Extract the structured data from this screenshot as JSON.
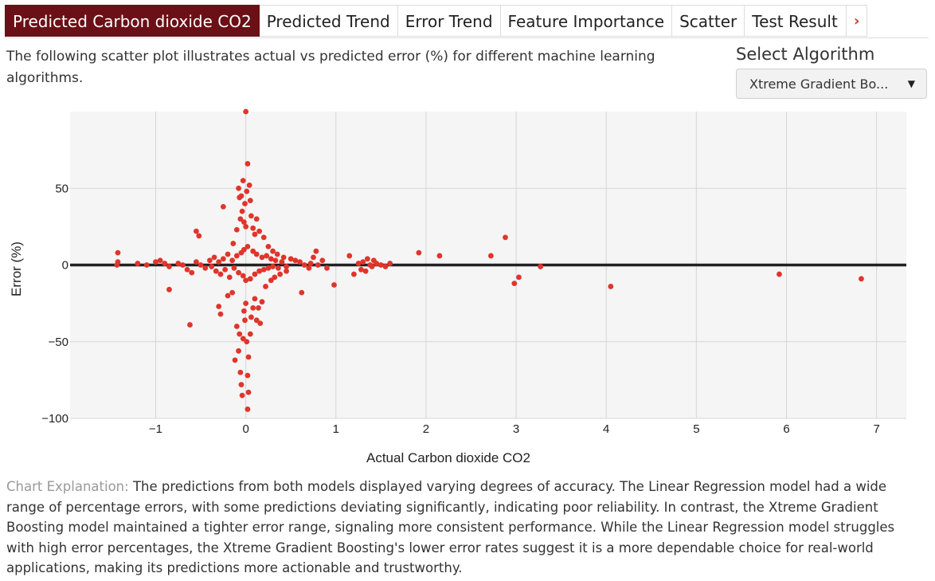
{
  "tabs": [
    {
      "label": "Predicted Carbon dioxide CO2",
      "active": true
    },
    {
      "label": "Predicted Trend",
      "active": false
    },
    {
      "label": "Error Trend",
      "active": false
    },
    {
      "label": "Feature Importance",
      "active": false
    },
    {
      "label": "Scatter",
      "active": false
    },
    {
      "label": "Test Result",
      "active": false
    }
  ],
  "tab_next_icon": "chevron-right-icon",
  "description": "The following scatter plot illustrates actual vs predicted error (%) for different machine learning algorithms.",
  "select": {
    "label": "Select Algorithm",
    "value": "Xtreme Gradient Bo..."
  },
  "colors": {
    "accent": "#6a1016",
    "points": "#e0352b",
    "zero_line": "#222222",
    "plot_bg": "#f5f5f5"
  },
  "chart_data": {
    "type": "scatter",
    "xlabel": "Actual Carbon dioxide CO2",
    "ylabel": "Error (%)",
    "xlim": [
      -1.95,
      7.33
    ],
    "ylim": [
      -100,
      100
    ],
    "x_ticks": [
      -1,
      0,
      1,
      2,
      3,
      4,
      5,
      6,
      7
    ],
    "x_tick_labels": [
      "−1",
      "0",
      "1",
      "2",
      "3",
      "4",
      "5",
      "6",
      "7"
    ],
    "y_ticks": [
      50,
      0,
      -50,
      -100
    ],
    "y_tick_labels": [
      "50",
      "0",
      "−50",
      "−100"
    ],
    "grid": true,
    "reference_line_y": 0,
    "series": [
      {
        "points": [
          [
            -1.42,
            8
          ],
          [
            -1.42,
            2
          ],
          [
            -1.43,
            0
          ],
          [
            -1.2,
            1
          ],
          [
            -1.1,
            0
          ],
          [
            -1.0,
            2
          ],
          [
            -0.95,
            3
          ],
          [
            -0.9,
            1
          ],
          [
            -0.85,
            -1
          ],
          [
            -0.75,
            1
          ],
          [
            -0.7,
            0
          ],
          [
            -0.65,
            -3
          ],
          [
            -0.6,
            -5
          ],
          [
            -0.55,
            2
          ],
          [
            -0.5,
            0
          ],
          [
            -0.45,
            -2
          ],
          [
            -0.4,
            3
          ],
          [
            -0.38,
            -1
          ],
          [
            -0.35,
            5
          ],
          [
            -0.33,
            -4
          ],
          [
            -0.3,
            2
          ],
          [
            -0.28,
            -6
          ],
          [
            -0.25,
            4
          ],
          [
            -0.23,
            -3
          ],
          [
            -0.2,
            7
          ],
          [
            -0.18,
            -8
          ],
          [
            -0.15,
            3
          ],
          [
            -0.13,
            -2
          ],
          [
            -0.1,
            6
          ],
          [
            -0.08,
            -5
          ],
          [
            -0.05,
            8
          ],
          [
            -0.03,
            -7
          ],
          [
            -0.02,
            10
          ],
          [
            0.0,
            -10
          ],
          [
            0.02,
            12
          ],
          [
            0.05,
            -9
          ],
          [
            0.08,
            9
          ],
          [
            0.1,
            -6
          ],
          [
            0.12,
            7
          ],
          [
            0.15,
            -4
          ],
          [
            0.18,
            5
          ],
          [
            0.2,
            -3
          ],
          [
            0.23,
            6
          ],
          [
            0.25,
            -2
          ],
          [
            0.28,
            4
          ],
          [
            0.3,
            -1
          ],
          [
            0.33,
            3
          ],
          [
            0.36,
            -2
          ],
          [
            0.4,
            2
          ],
          [
            0.45,
            -1
          ],
          [
            -0.85,
            -16
          ],
          [
            -0.62,
            -39
          ],
          [
            -0.55,
            22
          ],
          [
            -0.52,
            19
          ],
          [
            -0.3,
            -27
          ],
          [
            -0.28,
            -32
          ],
          [
            -0.25,
            38
          ],
          [
            -0.2,
            -20
          ],
          [
            -0.15,
            -18
          ],
          [
            -0.14,
            14
          ],
          [
            -0.12,
            -62
          ],
          [
            -0.1,
            -40
          ],
          [
            -0.1,
            23
          ],
          [
            -0.08,
            -56
          ],
          [
            -0.08,
            50
          ],
          [
            -0.07,
            -45
          ],
          [
            -0.07,
            44
          ],
          [
            -0.06,
            -70
          ],
          [
            -0.06,
            30
          ],
          [
            -0.05,
            -78
          ],
          [
            -0.05,
            45
          ],
          [
            -0.04,
            -85
          ],
          [
            -0.04,
            35
          ],
          [
            -0.03,
            -48
          ],
          [
            -0.03,
            55
          ],
          [
            -0.02,
            -30
          ],
          [
            -0.02,
            28
          ],
          [
            -0.01,
            -36
          ],
          [
            -0.01,
            40
          ],
          [
            0.0,
            -25
          ],
          [
            0.0,
            25
          ],
          [
            0.0,
            100
          ],
          [
            0.01,
            -50
          ],
          [
            0.01,
            48
          ],
          [
            0.02,
            -72
          ],
          [
            0.02,
            66
          ],
          [
            0.02,
            -94
          ],
          [
            0.03,
            -83
          ],
          [
            0.03,
            -60
          ],
          [
            0.04,
            52
          ],
          [
            0.05,
            -45
          ],
          [
            0.05,
            42
          ],
          [
            0.06,
            -34
          ],
          [
            0.06,
            32
          ],
          [
            0.08,
            -28
          ],
          [
            0.08,
            24
          ],
          [
            0.1,
            -22
          ],
          [
            0.1,
            20
          ],
          [
            0.12,
            -36
          ],
          [
            0.12,
            30
          ],
          [
            0.14,
            -28
          ],
          [
            0.15,
            22
          ],
          [
            0.16,
            -38
          ],
          [
            0.18,
            -24
          ],
          [
            0.2,
            18
          ],
          [
            0.22,
            -14
          ],
          [
            0.25,
            12
          ],
          [
            0.28,
            -10
          ],
          [
            0.3,
            9
          ],
          [
            0.32,
            -8
          ],
          [
            0.35,
            7
          ],
          [
            0.38,
            -6
          ],
          [
            0.42,
            5
          ],
          [
            0.45,
            -4
          ],
          [
            0.5,
            4
          ],
          [
            0.55,
            3
          ],
          [
            0.6,
            2
          ],
          [
            0.62,
            -18
          ],
          [
            0.65,
            0
          ],
          [
            0.7,
            -2
          ],
          [
            0.72,
            1
          ],
          [
            0.75,
            5
          ],
          [
            0.78,
            9
          ],
          [
            0.8,
            0
          ],
          [
            0.85,
            3
          ],
          [
            0.9,
            -2
          ],
          [
            0.98,
            -13
          ],
          [
            1.15,
            6
          ],
          [
            1.2,
            -6
          ],
          [
            1.25,
            1
          ],
          [
            1.28,
            -3
          ],
          [
            1.3,
            2
          ],
          [
            1.33,
            -4
          ],
          [
            1.35,
            4
          ],
          [
            1.38,
            0
          ],
          [
            1.4,
            -1
          ],
          [
            1.42,
            3
          ],
          [
            1.45,
            1
          ],
          [
            1.5,
            0
          ],
          [
            1.55,
            -1
          ],
          [
            1.6,
            1
          ],
          [
            1.92,
            8
          ],
          [
            2.15,
            6
          ],
          [
            2.72,
            6
          ],
          [
            2.88,
            18
          ],
          [
            2.98,
            -12
          ],
          [
            3.03,
            -8
          ],
          [
            3.27,
            -1
          ],
          [
            4.05,
            -14
          ],
          [
            5.92,
            -6
          ],
          [
            6.83,
            -9
          ]
        ]
      }
    ]
  },
  "explanation": {
    "label": "Chart Explanation:",
    "text": "The predictions from both models displayed varying degrees of accuracy. The Linear Regression model had a wide range of percentage errors, with some predictions deviating significantly, indicating poor reliability. In contrast, the Xtreme Gradient Boosting model maintained a tighter error range, signaling more consistent performance. While the Linear Regression model struggles with high error percentages, the Xtreme Gradient Boosting's lower error rates suggest it is a more dependable choice for real-world applications, making its predictions more actionable and trustworthy."
  }
}
